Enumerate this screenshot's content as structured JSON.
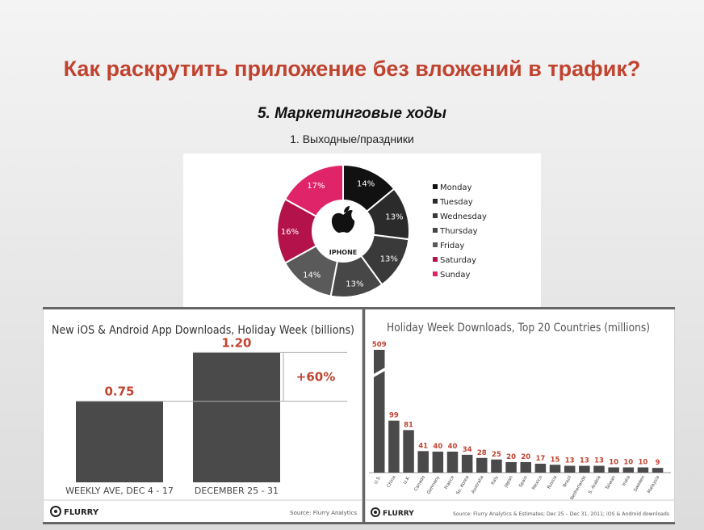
{
  "header": {
    "title": "Как раскрутить приложение без вложений в трафик?",
    "subtitle": "5. Маркетинговые ходы",
    "subsubtitle": "1. Выходные/праздники"
  },
  "chart_data": [
    {
      "type": "pie",
      "donut": true,
      "center_label": "IPHONE",
      "center_icon": "apple-logo-icon",
      "legend_position": "right",
      "slices": [
        {
          "name": "Monday",
          "value": 14,
          "label": "14%",
          "color": "#111111"
        },
        {
          "name": "Tuesday",
          "value": 13,
          "label": "13%",
          "color": "#2b2b2b"
        },
        {
          "name": "Wednesday",
          "value": 13,
          "label": "13%",
          "color": "#3a3a3a"
        },
        {
          "name": "Thursday",
          "value": 13,
          "label": "13%",
          "color": "#474747"
        },
        {
          "name": "Friday",
          "value": 14,
          "label": "14%",
          "color": "#5a5a5a"
        },
        {
          "name": "Saturday",
          "value": 16,
          "label": "16%",
          "color": "#b3134a"
        },
        {
          "name": "Sunday",
          "value": 17,
          "label": "17%",
          "color": "#e0246a"
        }
      ]
    },
    {
      "type": "bar",
      "title": "New iOS & Android App Downloads, Holiday Week (billions)",
      "categories": [
        "WEEKLY AVE, DEC 4 - 17",
        "DECEMBER 25 - 31"
      ],
      "values": [
        0.75,
        1.2
      ],
      "value_labels": [
        "0.75",
        "1.20"
      ],
      "annotation": "+60%",
      "ylim": [
        0,
        1.3
      ],
      "brand": "FLURRY",
      "source": "Source: Flurry Analytics",
      "bar_color": "#4a4a4a",
      "label_color": "#c0432f"
    },
    {
      "type": "bar",
      "title": "Holiday Week Downloads, Top 20 Countries (millions)",
      "categories": [
        "U.S.",
        "China",
        "U.K.",
        "Canada",
        "Germany",
        "France",
        "So. Korea",
        "Australia",
        "Italy",
        "Japan",
        "Spain",
        "Mexico",
        "Russia",
        "Brazil",
        "Netherlands",
        "S. Arabia",
        "Taiwan",
        "India",
        "Sweden",
        "Malaysia"
      ],
      "values": [
        509,
        99,
        81,
        41,
        40,
        40,
        34,
        28,
        25,
        20,
        20,
        17,
        15,
        13,
        13,
        13,
        10,
        10,
        10,
        9
      ],
      "broken_axis": true,
      "brand": "FLURRY",
      "source": "Source: Flurry Analytics & Estimates; Dec 25 – Dec 31, 2011; iOS & Android downloads",
      "bar_color": "#4a4a4a",
      "label_color": "#c0432f"
    }
  ]
}
